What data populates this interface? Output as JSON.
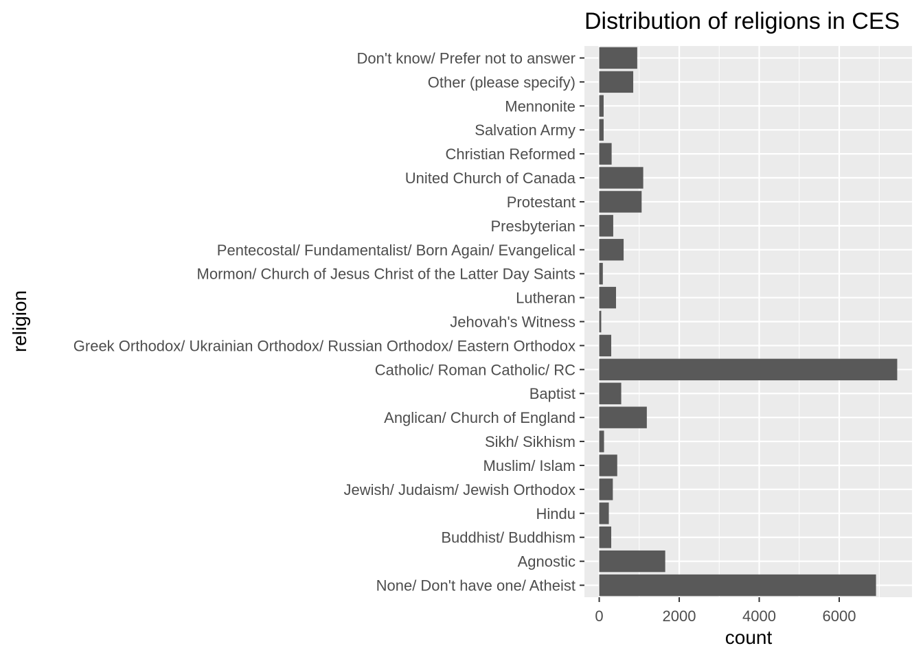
{
  "chart_data": {
    "type": "bar",
    "orientation": "horizontal",
    "title": "Distribution of religions in CES",
    "xlabel": "count",
    "ylabel": "religion",
    "categories": [
      "None/ Don't have one/ Atheist",
      "Agnostic",
      "Buddhist/ Buddhism",
      "Hindu",
      "Jewish/ Judaism/ Jewish Orthodox",
      "Muslim/ Islam",
      "Sikh/ Sikhism",
      "Anglican/ Church of England",
      "Baptist",
      "Catholic/ Roman Catholic/ RC",
      "Greek Orthodox/ Ukrainian Orthodox/ Russian Orthodox/ Eastern Orthodox",
      "Jehovah's Witness",
      "Lutheran",
      "Mormon/ Church of Jesus Christ of the Latter Day Saints",
      "Pentecostal/ Fundamentalist/ Born Again/ Evangelical",
      "Presbyterian",
      "Protestant",
      "United Church of Canada",
      "Christian Reformed",
      "Salvation Army",
      "Mennonite",
      "Other (please specify)",
      "Don't know/ Prefer not to answer"
    ],
    "values": [
      6920,
      1650,
      300,
      240,
      340,
      450,
      120,
      1190,
      550,
      7450,
      300,
      50,
      420,
      90,
      610,
      350,
      1060,
      1100,
      310,
      110,
      110,
      850,
      950
    ],
    "xlim": [
      -370,
      7820
    ],
    "xticks": [
      0,
      2000,
      4000,
      6000
    ],
    "xtick_labels": [
      "0",
      "2000",
      "4000",
      "6000"
    ],
    "grid": true,
    "colors": {
      "bar": "#595959",
      "panel_background": "#ebebeb",
      "grid": "#ffffff",
      "tick_label": "#4d4d4d",
      "tick_mark": "#333333"
    }
  }
}
